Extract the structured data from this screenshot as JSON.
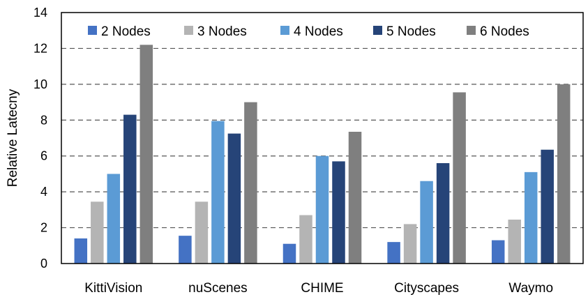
{
  "chart_data": {
    "type": "bar",
    "title": "",
    "xlabel": "",
    "ylabel": "Relative Latecny",
    "ylim": [
      0,
      14
    ],
    "yticks": [
      0,
      2,
      4,
      6,
      8,
      10,
      12,
      14
    ],
    "grid": true,
    "legend_position": "top",
    "categories": [
      "KittiVision",
      "nuScenes",
      "CHIME",
      "Cityscapes",
      "Waymo"
    ],
    "series": [
      {
        "name": "2 Nodes",
        "color": "#4472C4",
        "values": [
          1.4,
          1.55,
          1.1,
          1.2,
          1.3
        ]
      },
      {
        "name": "3 Nodes",
        "color": "#B4B4B4",
        "values": [
          3.45,
          3.45,
          2.7,
          2.2,
          2.45
        ]
      },
      {
        "name": "4 Nodes",
        "color": "#5B9BD5",
        "values": [
          5.0,
          7.95,
          6.0,
          4.6,
          5.1
        ]
      },
      {
        "name": "5 Nodes",
        "color": "#264478",
        "values": [
          8.3,
          7.25,
          5.7,
          5.6,
          6.35
        ]
      },
      {
        "name": "6 Nodes",
        "color": "#7F7F7F",
        "values": [
          12.2,
          9.0,
          7.35,
          9.55,
          10.0
        ]
      }
    ]
  }
}
